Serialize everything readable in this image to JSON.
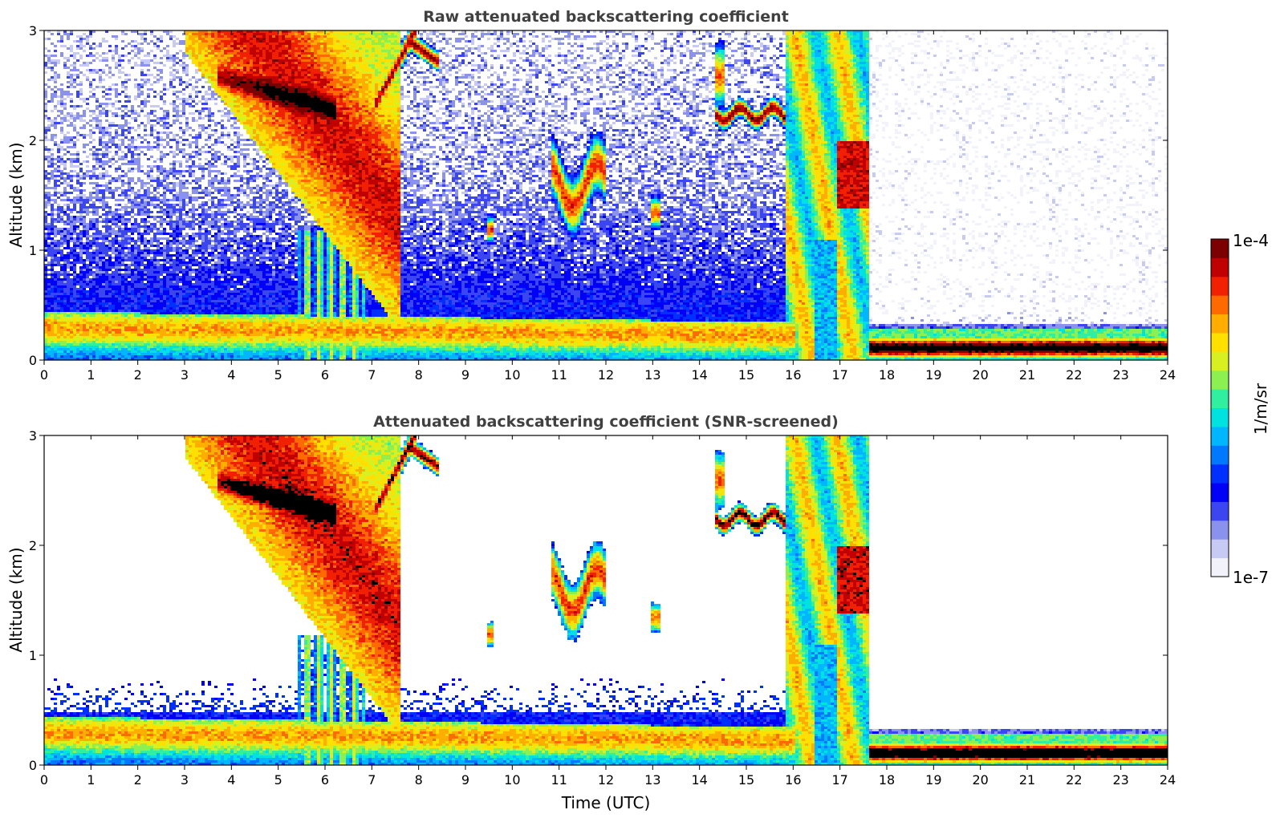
{
  "colors": {
    "scale": [
      "#f2f2fa",
      "#c7cbf3",
      "#8a92ee",
      "#3b45f0",
      "#0000f8",
      "#0030ff",
      "#0078ff",
      "#00b6ff",
      "#00e2e0",
      "#30f0a0",
      "#8cf050",
      "#d8f020",
      "#ffe000",
      "#ffae00",
      "#ff6a00",
      "#f02000",
      "#c00000",
      "#7d0000"
    ],
    "overflow": "#000000",
    "axis": "#000000",
    "title": "#404040"
  },
  "chart_data": [
    {
      "type": "heatmap",
      "title": "Raw attenuated backscattering coefficient",
      "xlabel": "",
      "ylabel": "Altitude (km)",
      "xlim": [
        0,
        24
      ],
      "ylim": [
        0,
        3
      ],
      "xticks": [
        "0",
        "1",
        "2",
        "3",
        "4",
        "5",
        "6",
        "7",
        "8",
        "9",
        "10",
        "11",
        "12",
        "13",
        "14",
        "15",
        "16",
        "17",
        "18",
        "19",
        "20",
        "21",
        "22",
        "23",
        "24"
      ],
      "yticks": [
        "0",
        "1",
        "2",
        "3"
      ],
      "screened": false
    },
    {
      "type": "heatmap",
      "title": "Attenuated backscattering coefficient (SNR-screened)",
      "xlabel": "Time (UTC)",
      "ylabel": "Altitude (km)",
      "xlim": [
        0,
        24
      ],
      "ylim": [
        0,
        3
      ],
      "xticks": [
        "0",
        "1",
        "2",
        "3",
        "4",
        "5",
        "6",
        "7",
        "8",
        "9",
        "10",
        "11",
        "12",
        "13",
        "14",
        "15",
        "16",
        "17",
        "18",
        "19",
        "20",
        "21",
        "22",
        "23",
        "24"
      ],
      "yticks": [
        "0",
        "1",
        "2",
        "3"
      ],
      "screened": true
    }
  ],
  "colorbar": {
    "label": "1/m/sr",
    "max_label": "1e-4",
    "min_label": "1e-7",
    "range": [
      1e-07,
      0.0001
    ],
    "scale": "log"
  }
}
